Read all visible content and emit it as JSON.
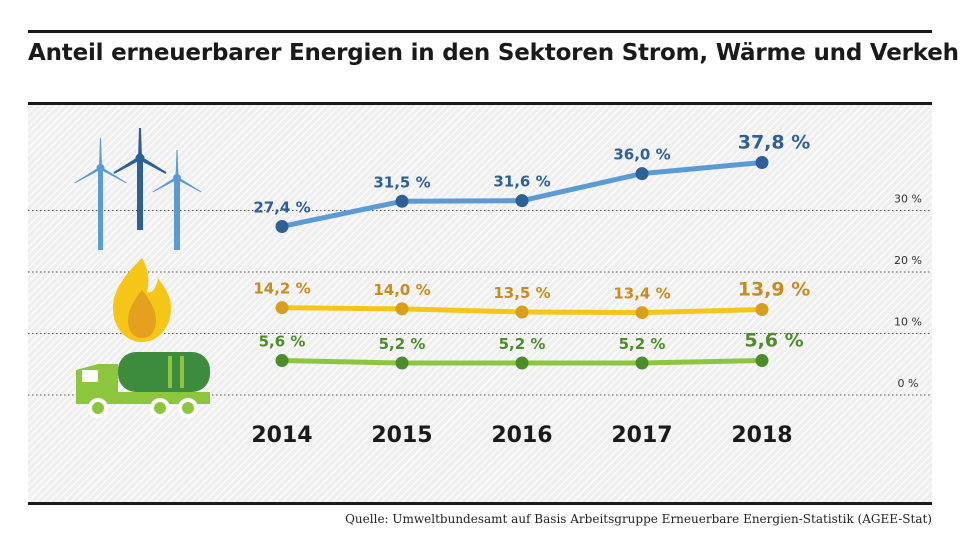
{
  "chart_data": {
    "type": "line",
    "title": "Anteil erneuerbarer Energien in den Sektoren Strom, Wärme und Verkehr",
    "categories": [
      "2014",
      "2015",
      "2016",
      "2017",
      "2018"
    ],
    "ylim": [
      0,
      40
    ],
    "yticks": [
      0,
      10,
      20,
      30
    ],
    "ytick_labels": [
      "0 %",
      "10 %",
      "20 %",
      "30 %"
    ],
    "grid": true,
    "series": [
      {
        "key": "strom",
        "values": [
          27.4,
          31.5,
          31.6,
          36.0,
          37.8
        ],
        "labels": [
          "27,4 %",
          "31,5 %",
          "31,6 %",
          "36,0 %",
          "37,8 %"
        ],
        "color": "#5b9bd5",
        "marker_color": "#2e5f96",
        "label_color": "#2e5f96",
        "icon": "wind-turbines-icon"
      },
      {
        "key": "waerme",
        "values": [
          14.2,
          14.0,
          13.5,
          13.4,
          13.9
        ],
        "labels": [
          "14,2 %",
          "14,0 %",
          "13,5 %",
          "13,4 %",
          "13,9 %"
        ],
        "color": "#f5c518",
        "marker_color": "#d89e1e",
        "label_color": "#c98a1e",
        "icon": "flame-icon"
      },
      {
        "key": "verkehr",
        "values": [
          5.6,
          5.2,
          5.2,
          5.2,
          5.6
        ],
        "labels": [
          "5,6 %",
          "5,2 %",
          "5,2 %",
          "5,2 %",
          "5,6 %"
        ],
        "color": "#8cc63f",
        "marker_color": "#4c8c2a",
        "label_color": "#4c8c2a",
        "icon": "tanker-truck-icon"
      }
    ]
  },
  "source": "Quelle: Umweltbundesamt auf Basis Arbeitsgruppe Erneuerbare Energien-Statistik (AGEE-Stat)"
}
